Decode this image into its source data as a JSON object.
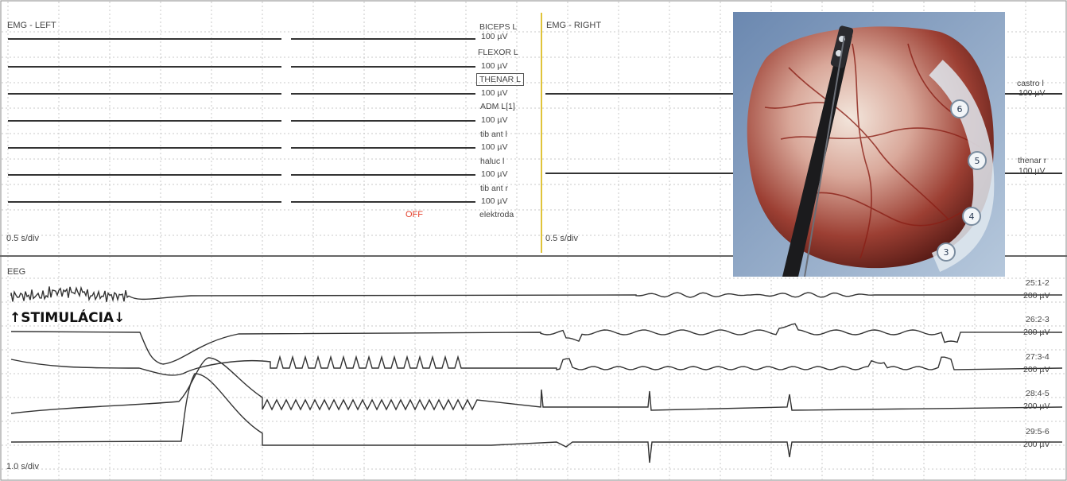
{
  "emg_left": {
    "title": "EMG - LEFT",
    "timebase": "0.5 s/div",
    "channels": [
      {
        "name": "BICEPS L",
        "gain": "100 µV"
      },
      {
        "name": "FLEXOR L",
        "gain": "100 µV"
      },
      {
        "name": "THENAR L",
        "gain": "100 µV"
      },
      {
        "name": "ADM L[1]",
        "gain": "100 µV"
      },
      {
        "name": "tib ant l",
        "gain": "100 µV"
      },
      {
        "name": "haluc l",
        "gain": "100 µV"
      },
      {
        "name": "tib ant r",
        "gain": "100 µV"
      }
    ],
    "off_label": "OFF",
    "electrode_label": "elektroda"
  },
  "emg_right": {
    "title": "EMG - RIGHT",
    "timebase": "0.5 s/div",
    "channels": [
      {
        "name": "castro l",
        "gain": "100 µV"
      },
      {
        "name": "thenar r",
        "gain": "100 µV"
      }
    ]
  },
  "eeg": {
    "title": "EEG",
    "timebase": "1.0 s/div",
    "stimulation_label": "↑STIMULÁCIA↓",
    "channels": [
      {
        "name": "25:1-2",
        "gain": "200 µV"
      },
      {
        "name": "26:2-3",
        "gain": "200 µV"
      },
      {
        "name": "27:3-4",
        "gain": "200 µV"
      },
      {
        "name": "28:4-5",
        "gain": "200 µV"
      },
      {
        "name": "29:5-6",
        "gain": "200 µV"
      }
    ]
  },
  "photo": {
    "electrode_contacts": [
      "6",
      "5",
      "4",
      "3"
    ]
  },
  "colors": {
    "cursor": "#e0c43a",
    "trace": "#333333",
    "grid": "#c8c8c8",
    "off": "#e4412c"
  }
}
